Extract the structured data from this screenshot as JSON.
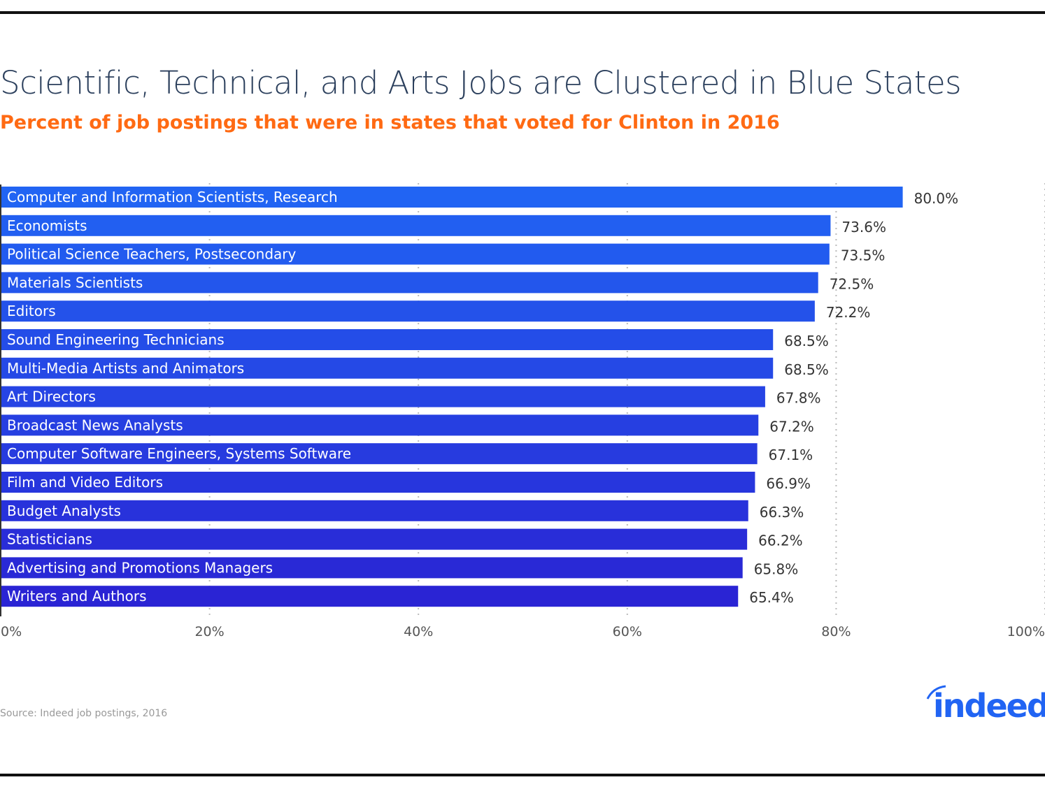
{
  "chart_data": {
    "type": "bar",
    "orientation": "horizontal",
    "title": "Scientific, Technical, and Arts Jobs are Clustered in Blue States",
    "subtitle": "Percent of job postings that were in states that voted for Clinton in 2016",
    "categories": [
      "Computer and Information Scientists, Research",
      "Economists",
      "Political Science Teachers, Postsecondary",
      "Materials Scientists",
      "Editors",
      "Sound Engineering Technicians",
      "Multi-Media Artists and Animators",
      "Art Directors",
      "Broadcast News Analysts",
      "Computer Software Engineers, Systems Software",
      "Film and Video Editors",
      "Budget Analysts",
      "Statisticians",
      "Advertising and Promotions Managers",
      "Writers and Authors"
    ],
    "values": [
      80.0,
      73.6,
      73.5,
      72.5,
      72.2,
      68.5,
      68.5,
      67.8,
      67.2,
      67.1,
      66.9,
      66.3,
      66.2,
      65.8,
      65.4
    ],
    "data_labels": [
      "80.0%",
      "73.6%",
      "73.5%",
      "72.5%",
      "72.2%",
      "68.5%",
      "68.5%",
      "67.8%",
      "67.2%",
      "67.1%",
      "66.9%",
      "66.3%",
      "66.2%",
      "65.8%",
      "65.4%"
    ],
    "xticks": [
      0,
      20,
      40,
      60,
      80,
      100
    ],
    "xtick_labels": [
      "0%",
      "20%",
      "40%",
      "60%",
      "80%",
      "100%"
    ],
    "xlim": [
      0,
      100
    ],
    "grid": "vertical dotted",
    "colors": {
      "bar_top": "#2164f3",
      "bar_bottom": "#2a24d4",
      "title": "#2b3f5c",
      "subtitle": "#ff6a13"
    }
  },
  "source": "Source: Indeed job postings, 2016",
  "logo_text": "indeed"
}
